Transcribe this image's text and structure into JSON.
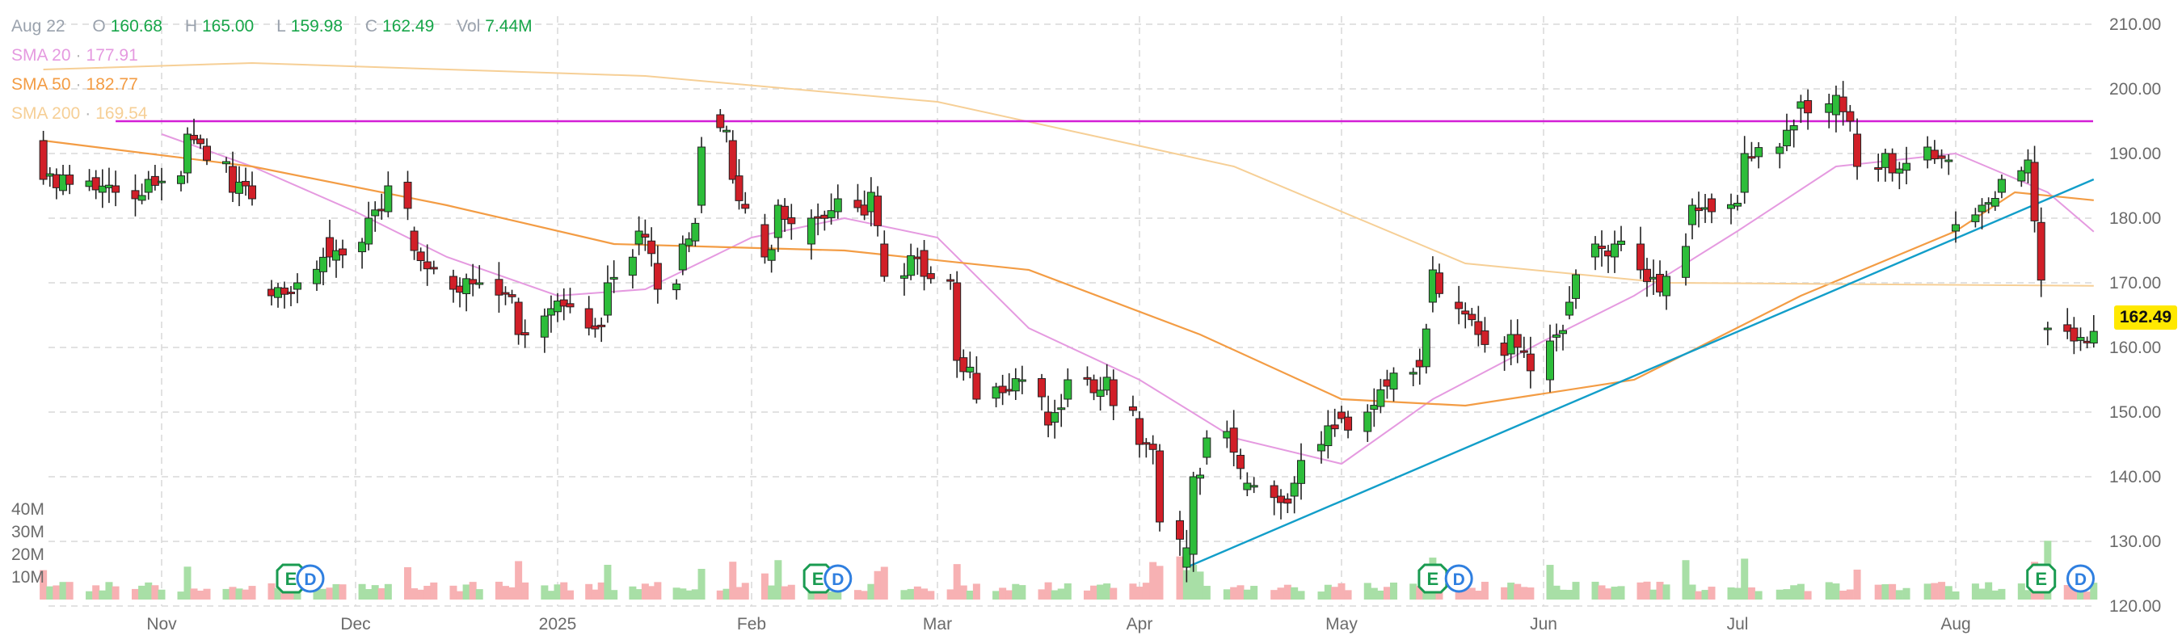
{
  "header": {
    "date": "Aug 22",
    "open_key": "O",
    "open": "160.68",
    "high_key": "H",
    "high": "165.00",
    "low_key": "L",
    "low": "159.98",
    "close_key": "C",
    "close": "162.49",
    "vol_key": "Vol",
    "vol": "7.44M"
  },
  "indicators": [
    {
      "label": "SMA 20",
      "value": "177.91",
      "color": "#e59ae0"
    },
    {
      "label": "SMA 50",
      "value": "182.77",
      "color": "#f39c44"
    },
    {
      "label": "SMA 200",
      "value": "169.54",
      "color": "#f6cf96"
    }
  ],
  "last_price_label": "162.49",
  "colors": {
    "up": "#2dbd3a",
    "down": "#d11f28",
    "vol_up": "#a8dfa6",
    "vol_down": "#f7b1b3",
    "resistance": "#d31fd6",
    "trendline": "#129ec9",
    "event": "#1a9b51",
    "dividend": "#2f7fe0"
  },
  "chart_data": {
    "type": "candlestick",
    "x_tick_labels": [
      "Nov",
      "Dec",
      "2025",
      "Feb",
      "Mar",
      "Apr",
      "May",
      "Jun",
      "Jul",
      "Aug"
    ],
    "y_tick_labels": [
      "210.00",
      "200.00",
      "190.00",
      "180.00",
      "170.00",
      "160.00",
      "150.00",
      "140.00",
      "130.00",
      "120.00"
    ],
    "ylim": [
      120,
      210
    ],
    "volume_tick_labels": [
      "40M",
      "30M",
      "20M",
      "10M"
    ],
    "volume_ylim": [
      0,
      40
    ],
    "grid": true,
    "legend_position": "top-left",
    "earnings_marker_label": "E",
    "dividend_marker_label": "D",
    "events": [
      {
        "type": "E",
        "date": "2024-11-21"
      },
      {
        "type": "D",
        "date": "2024-11-24"
      },
      {
        "type": "E",
        "date": "2025-02-11"
      },
      {
        "type": "D",
        "date": "2025-02-14"
      },
      {
        "type": "E",
        "date": "2025-05-15"
      },
      {
        "type": "D",
        "date": "2025-05-19"
      },
      {
        "type": "E",
        "date": "2025-08-14"
      },
      {
        "type": "D",
        "date": "2025-08-20"
      }
    ],
    "horizontal_line": {
      "y": 195
    },
    "trend_line": {
      "from": {
        "date": "2025-04-08",
        "y": 126
      },
      "to": {
        "date": "2025-08-22",
        "y": 186
      }
    },
    "candle_anchors": [
      [
        "2024-10-14",
        192,
        186
      ],
      [
        "2024-10-25",
        185,
        184
      ],
      [
        "2024-10-30",
        184,
        186
      ],
      [
        "2024-11-05",
        187,
        193
      ],
      [
        "2024-11-12",
        188,
        184
      ],
      [
        "2024-11-15",
        185,
        183
      ],
      [
        "2024-11-18",
        169,
        168
      ],
      [
        "2024-11-22",
        169,
        170
      ],
      [
        "2024-11-27",
        177,
        174
      ],
      [
        "2024-12-03",
        176,
        180
      ],
      [
        "2024-12-06",
        181,
        185
      ],
      [
        "2024-12-10",
        178,
        175
      ],
      [
        "2024-12-16",
        171,
        169
      ],
      [
        "2024-12-20",
        170,
        170
      ],
      [
        "2024-12-26",
        167,
        162
      ],
      [
        "2024-12-31",
        165,
        166
      ],
      [
        "2025-01-06",
        166,
        163
      ],
      [
        "2025-01-09",
        165,
        170
      ],
      [
        "2025-01-14",
        176,
        178
      ],
      [
        "2025-01-17",
        173,
        169
      ],
      [
        "2025-01-21",
        172,
        176
      ],
      [
        "2025-01-24",
        182,
        191
      ],
      [
        "2025-01-27",
        196,
        194
      ],
      [
        "2025-01-29",
        192,
        186
      ],
      [
        "2025-02-03",
        179,
        174
      ],
      [
        "2025-02-05",
        177,
        182
      ],
      [
        "2025-02-10",
        176,
        180
      ],
      [
        "2025-02-14",
        181,
        183
      ],
      [
        "2025-02-19",
        181,
        184
      ],
      [
        "2025-02-21",
        176,
        171
      ],
      [
        "2025-02-27",
        175,
        171
      ],
      [
        "2025-03-04",
        170,
        158
      ],
      [
        "2025-03-07",
        156,
        152
      ],
      [
        "2025-03-11",
        154,
        153
      ],
      [
        "2025-03-14",
        155,
        155
      ],
      [
        "2025-03-18",
        150,
        148
      ],
      [
        "2025-03-21",
        152,
        155
      ],
      [
        "2025-03-25",
        155,
        153
      ],
      [
        "2025-03-28",
        155,
        151
      ],
      [
        "2025-04-01",
        149,
        145
      ],
      [
        "2025-04-04",
        144,
        133
      ],
      [
        "2025-04-08",
        126,
        129
      ],
      [
        "2025-04-09",
        128,
        140
      ],
      [
        "2025-04-11",
        143,
        146
      ],
      [
        "2025-04-14",
        146,
        147
      ],
      [
        "2025-04-17",
        138,
        139
      ],
      [
        "2025-04-22",
        137,
        136
      ],
      [
        "2025-04-24",
        137,
        139
      ],
      [
        "2025-04-28",
        144,
        145
      ],
      [
        "2025-05-01",
        150,
        149
      ],
      [
        "2025-05-05",
        147,
        150
      ],
      [
        "2025-05-08",
        155,
        154
      ],
      [
        "2025-05-13",
        158,
        157
      ],
      [
        "2025-05-15",
        167,
        172
      ],
      [
        "2025-05-19",
        167,
        166
      ],
      [
        "2025-05-22",
        164,
        162
      ],
      [
        "2025-05-27",
        159,
        162
      ],
      [
        "2025-06-02",
        155,
        161
      ],
      [
        "2025-06-05",
        165,
        167
      ],
      [
        "2025-06-09",
        174,
        176
      ],
      [
        "2025-06-12",
        174,
        176
      ],
      [
        "2025-06-16",
        176,
        172
      ],
      [
        "2025-06-20",
        168,
        171
      ],
      [
        "2025-06-24",
        179,
        182
      ],
      [
        "2025-06-27",
        183,
        181
      ],
      [
        "2025-07-02",
        184,
        190
      ],
      [
        "2025-07-07",
        190,
        191
      ],
      [
        "2025-07-10",
        197,
        198
      ],
      [
        "2025-07-15",
        196,
        199
      ],
      [
        "2025-07-18",
        193,
        188
      ],
      [
        "2025-07-23",
        190,
        187
      ],
      [
        "2025-07-28",
        189,
        191
      ],
      [
        "2025-07-31",
        189,
        189
      ],
      [
        "2025-08-01",
        178,
        179
      ],
      [
        "2025-08-05",
        181,
        182
      ],
      [
        "2025-08-08",
        184,
        186
      ],
      [
        "2025-08-12",
        187,
        189
      ],
      [
        "2025-08-15",
        163,
        163
      ],
      [
        "2025-08-19",
        163,
        161
      ],
      [
        "2025-08-22",
        160.68,
        162.49
      ]
    ],
    "series": [
      {
        "name": "SMA 20",
        "points": [
          [
            "2024-11-01",
            193
          ],
          [
            "2024-11-15",
            188
          ],
          [
            "2024-12-01",
            181
          ],
          [
            "2024-12-15",
            174
          ],
          [
            "2025-01-01",
            168
          ],
          [
            "2025-01-15",
            169
          ],
          [
            "2025-02-01",
            177
          ],
          [
            "2025-02-15",
            180
          ],
          [
            "2025-03-01",
            177
          ],
          [
            "2025-03-15",
            163
          ],
          [
            "2025-04-01",
            155
          ],
          [
            "2025-04-15",
            146
          ],
          [
            "2025-05-01",
            142
          ],
          [
            "2025-05-15",
            152
          ],
          [
            "2025-06-01",
            161
          ],
          [
            "2025-06-15",
            168
          ],
          [
            "2025-07-01",
            178
          ],
          [
            "2025-07-15",
            188
          ],
          [
            "2025-08-01",
            190
          ],
          [
            "2025-08-15",
            184
          ],
          [
            "2025-08-22",
            177.91
          ]
        ]
      },
      {
        "name": "SMA 50",
        "points": [
          [
            "2024-10-14",
            192
          ],
          [
            "2024-11-15",
            188
          ],
          [
            "2024-12-15",
            182
          ],
          [
            "2025-01-10",
            176
          ],
          [
            "2025-02-15",
            175
          ],
          [
            "2025-03-15",
            172
          ],
          [
            "2025-04-10",
            162
          ],
          [
            "2025-05-01",
            152
          ],
          [
            "2025-05-20",
            151
          ],
          [
            "2025-06-15",
            155
          ],
          [
            "2025-07-10",
            168
          ],
          [
            "2025-08-01",
            178
          ],
          [
            "2025-08-10",
            184
          ],
          [
            "2025-08-22",
            182.77
          ]
        ]
      },
      {
        "name": "SMA 200",
        "points": [
          [
            "2024-10-14",
            203
          ],
          [
            "2024-11-15",
            204
          ],
          [
            "2025-01-15",
            202
          ],
          [
            "2025-03-01",
            198
          ],
          [
            "2025-04-15",
            188
          ],
          [
            "2025-05-20",
            173
          ],
          [
            "2025-06-20",
            170
          ],
          [
            "2025-08-22",
            169.54
          ]
        ]
      }
    ]
  }
}
